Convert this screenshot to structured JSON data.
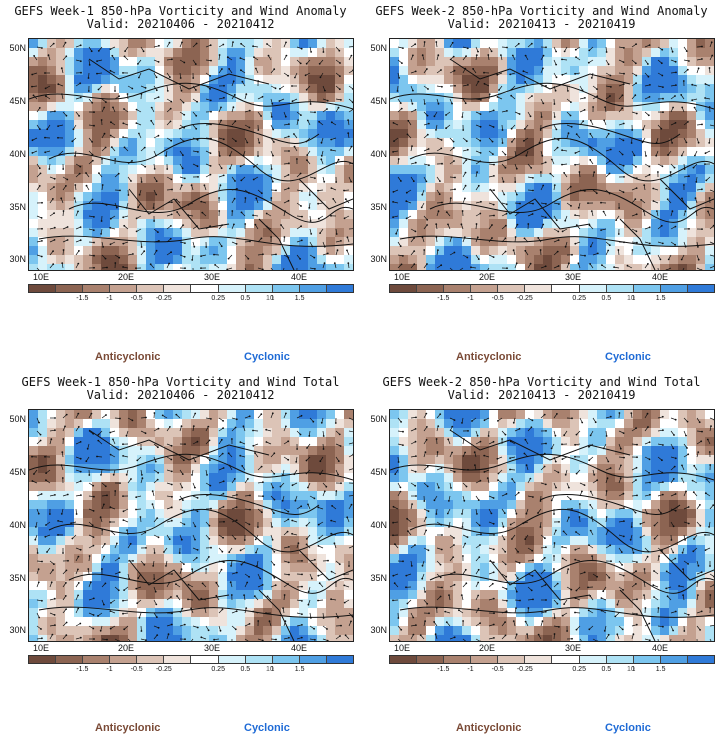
{
  "panels": [
    {
      "title": "GEFS Week-1 850-hPa Vorticity and Wind Anomaly",
      "valid": "Valid: 20210406 - 20210412",
      "seed": 11
    },
    {
      "title": "GEFS Week-2 850-hPa Vorticity and Wind Anomaly",
      "valid": "Valid: 20210413 - 20210419",
      "seed": 27
    },
    {
      "title": "GEFS Week-1 850-hPa Vorticity and Wind Total",
      "valid": "Valid: 20210406 - 20210412",
      "seed": 43
    },
    {
      "title": "GEFS Week-2 850-hPa Vorticity and Wind Total",
      "valid": "Valid: 20210413 - 20210419",
      "seed": 59
    }
  ],
  "lat_labels": [
    "50N",
    "45N",
    "40N",
    "35N",
    "30N"
  ],
  "lon_labels": [
    "10E",
    "20E",
    "30E",
    "40E"
  ],
  "colorbar": {
    "labels": [
      "-1.5",
      "-1",
      "-0.5",
      "-0.25",
      "0.25",
      "0.5",
      "1",
      "1.5"
    ],
    "scale_note": "10",
    "colors": [
      "#6e4a3c",
      "#8c6452",
      "#a9816e",
      "#c4a190",
      "#dcc4b7",
      "#efe3dc",
      "#ffffff",
      "#d6f2fb",
      "#aee2f5",
      "#7cc6ef",
      "#4f9fe4",
      "#2f7ad8"
    ]
  },
  "legend": {
    "anticyclonic": "Anticyclonic",
    "cyclonic": "Cyclonic"
  }
}
